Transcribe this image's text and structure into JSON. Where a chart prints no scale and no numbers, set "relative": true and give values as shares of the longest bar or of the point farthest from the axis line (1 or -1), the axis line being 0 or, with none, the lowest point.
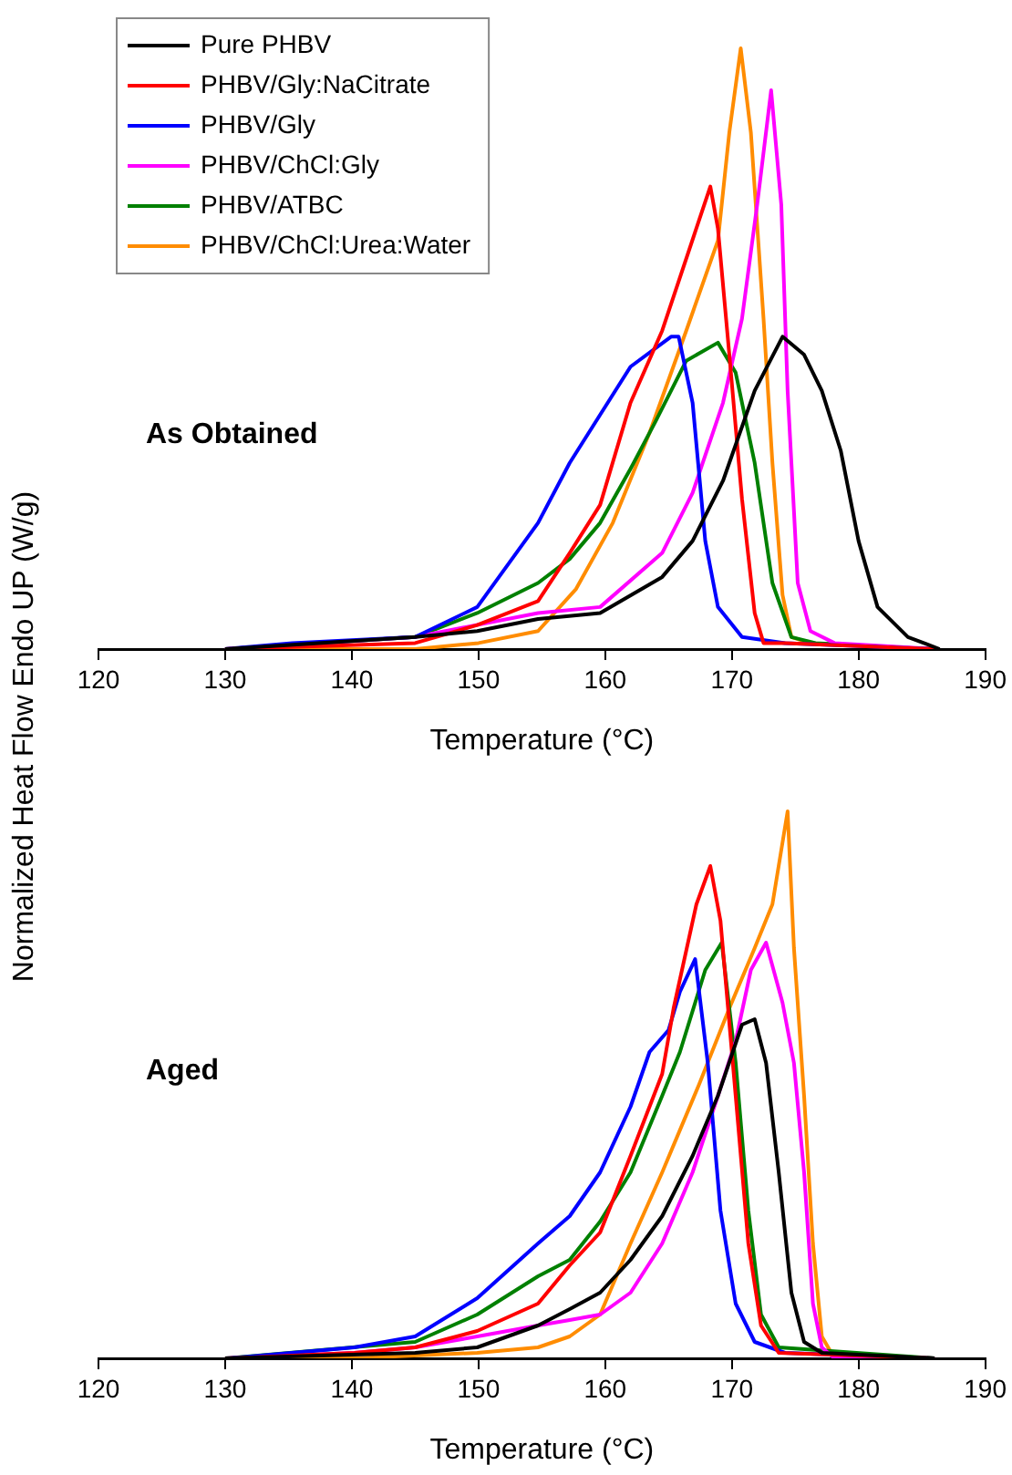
{
  "chart_data": [
    {
      "type": "line",
      "xlabel": "Temperature (°C)",
      "ylabel": "Normalized Heat Flow Endo UP (W/g)",
      "relative": true,
      "xlim": [
        120,
        190
      ],
      "xticks": [
        120,
        130,
        140,
        150,
        160,
        170,
        180,
        190
      ],
      "grid": false,
      "legend": "top left",
      "marker": "none",
      "line_style": "solid",
      "annotations": [
        "As Obtained"
      ],
      "series": [
        {
          "name": "Pure PHBV",
          "color": "#000000",
          "x": [
            130,
            145,
            149.9,
            154.7,
            159.6,
            164.5,
            166.9,
            169.3,
            171.8,
            174.0,
            175.7,
            177.1,
            178.6,
            180.0,
            181.5,
            183.9,
            186.4
          ],
          "values": [
            0,
            0.02,
            0.03,
            0.05,
            0.06,
            0.12,
            0.18,
            0.28,
            0.43,
            0.52,
            0.49,
            0.43,
            0.33,
            0.18,
            0.07,
            0.02,
            0
          ]
        },
        {
          "name": "PHBV/Gly:NaCitrate",
          "color": "#ff0000",
          "x": [
            130,
            145,
            149.9,
            154.7,
            157.2,
            159.6,
            162.0,
            164.5,
            168.3,
            168.9,
            169.8,
            170.8,
            171.8,
            172.5,
            174.2,
            186
          ],
          "values": [
            0,
            0.01,
            0.04,
            0.08,
            0.16,
            0.24,
            0.41,
            0.53,
            0.77,
            0.7,
            0.49,
            0.25,
            0.06,
            0.01,
            0.01,
            0
          ]
        },
        {
          "name": "PHBV/Gly",
          "color": "#0000ff",
          "x": [
            130,
            135.3,
            145,
            149.9,
            154.7,
            157.2,
            159.6,
            162.0,
            165.2,
            165.8,
            166.9,
            167.9,
            168.9,
            170.8,
            174.2,
            186
          ],
          "values": [
            0,
            0.01,
            0.02,
            0.07,
            0.21,
            0.31,
            0.39,
            0.47,
            0.52,
            0.52,
            0.41,
            0.18,
            0.07,
            0.02,
            0.01,
            0
          ]
        },
        {
          "name": "PHBV/ChCl:Gly",
          "color": "#ff00ff",
          "x": [
            130,
            145,
            154.7,
            159.6,
            164.5,
            166.9,
            169.3,
            170.8,
            172.0,
            173.1,
            173.9,
            174.4,
            175.2,
            176.2,
            178.1,
            186
          ],
          "values": [
            0,
            0.02,
            0.06,
            0.07,
            0.16,
            0.26,
            0.41,
            0.55,
            0.74,
            0.93,
            0.74,
            0.43,
            0.11,
            0.03,
            0.01,
            0
          ]
        },
        {
          "name": "PHBV/ATBC",
          "color": "#008000",
          "x": [
            130,
            145,
            149.9,
            154.7,
            157.2,
            159.6,
            162.0,
            164.0,
            166.4,
            168.9,
            170.3,
            171.8,
            173.2,
            174.7,
            176.6,
            186
          ],
          "values": [
            0,
            0.02,
            0.06,
            0.11,
            0.15,
            0.21,
            0.3,
            0.38,
            0.48,
            0.51,
            0.46,
            0.31,
            0.11,
            0.02,
            0.01,
            0
          ]
        },
        {
          "name": "PHBV/ChCl:Urea:Water",
          "color": "#ff8c00",
          "x": [
            130,
            145,
            150,
            154.7,
            157.7,
            160.6,
            163.5,
            166.4,
            168.9,
            169.8,
            170.7,
            171.5,
            172.5,
            173.2,
            174.0,
            174.7,
            176.2,
            186
          ],
          "values": [
            0,
            0,
            0.01,
            0.03,
            0.1,
            0.21,
            0.36,
            0.53,
            0.68,
            0.86,
            1,
            0.86,
            0.55,
            0.31,
            0.09,
            0.02,
            0.01,
            0
          ]
        }
      ]
    },
    {
      "type": "line",
      "xlabel": "Temperature (°C)",
      "relative": true,
      "xlim": [
        120,
        190
      ],
      "xticks": [
        120,
        130,
        140,
        150,
        160,
        170,
        180,
        190
      ],
      "grid": false,
      "marker": "none",
      "line_style": "solid",
      "annotations": [
        "Aged"
      ],
      "series": [
        {
          "color": "#000000",
          "x": [
            130,
            145,
            149.9,
            154.7,
            157.2,
            159.6,
            162.0,
            164.5,
            166.9,
            168.9,
            170.8,
            171.8,
            172.7,
            173.7,
            174.7,
            175.7,
            177.1,
            186
          ],
          "values": [
            0,
            0.01,
            0.02,
            0.06,
            0.09,
            0.12,
            0.18,
            0.26,
            0.37,
            0.48,
            0.61,
            0.62,
            0.54,
            0.34,
            0.12,
            0.03,
            0.01,
            0
          ]
        },
        {
          "color": "#ff0000",
          "x": [
            130.4,
            140.2,
            145,
            149.9,
            154.7,
            157.2,
            159.6,
            162.0,
            164.5,
            165.4,
            167.2,
            168.3,
            169.1,
            170.3,
            171.3,
            172.3,
            173.7,
            186
          ],
          "values": [
            0,
            0.01,
            0.02,
            0.05,
            0.1,
            0.17,
            0.23,
            0.37,
            0.52,
            0.64,
            0.83,
            0.9,
            0.8,
            0.48,
            0.21,
            0.06,
            0.01,
            0
          ]
        },
        {
          "color": "#0000ff",
          "x": [
            130.4,
            140.2,
            145,
            149.9,
            154.7,
            157.2,
            159.6,
            162.0,
            163.5,
            165.0,
            165.9,
            167.1,
            168.1,
            169.1,
            170.3,
            171.8,
            174.2,
            186
          ],
          "values": [
            0,
            0.02,
            0.04,
            0.11,
            0.21,
            0.26,
            0.34,
            0.46,
            0.56,
            0.6,
            0.67,
            0.73,
            0.54,
            0.27,
            0.1,
            0.03,
            0.01,
            0
          ]
        },
        {
          "color": "#ff00ff",
          "x": [
            130,
            140.2,
            145,
            149.9,
            154.7,
            157.2,
            159.6,
            162.0,
            164.5,
            166.9,
            168.9,
            170.3,
            171.5,
            172.7,
            174.0,
            174.9,
            175.7,
            176.4,
            177.1,
            178.1,
            186
          ],
          "values": [
            0,
            0.01,
            0.02,
            0.04,
            0.06,
            0.07,
            0.08,
            0.12,
            0.21,
            0.34,
            0.48,
            0.58,
            0.71,
            0.76,
            0.65,
            0.54,
            0.34,
            0.1,
            0.02,
            0,
            0
          ]
        },
        {
          "color": "#008000",
          "x": [
            130,
            145,
            149.9,
            154.7,
            157.2,
            159.6,
            162.0,
            164.5,
            165.9,
            167.9,
            169.2,
            170.3,
            171.3,
            172.3,
            173.7,
            186
          ],
          "values": [
            0,
            0.03,
            0.08,
            0.15,
            0.18,
            0.25,
            0.34,
            0.48,
            0.56,
            0.71,
            0.76,
            0.54,
            0.27,
            0.08,
            0.02,
            0
          ]
        },
        {
          "color": "#ff8c00",
          "x": [
            130,
            140,
            149.9,
            154.7,
            157.2,
            159.6,
            162.0,
            164.5,
            167.4,
            169.8,
            171.8,
            173.2,
            174.4,
            174.9,
            175.7,
            176.4,
            177.1,
            178.1,
            186
          ],
          "values": [
            0,
            0,
            0.01,
            0.02,
            0.04,
            0.08,
            0.21,
            0.34,
            0.5,
            0.64,
            0.75,
            0.83,
            1,
            0.75,
            0.48,
            0.21,
            0.04,
            0,
            0
          ]
        }
      ]
    }
  ]
}
